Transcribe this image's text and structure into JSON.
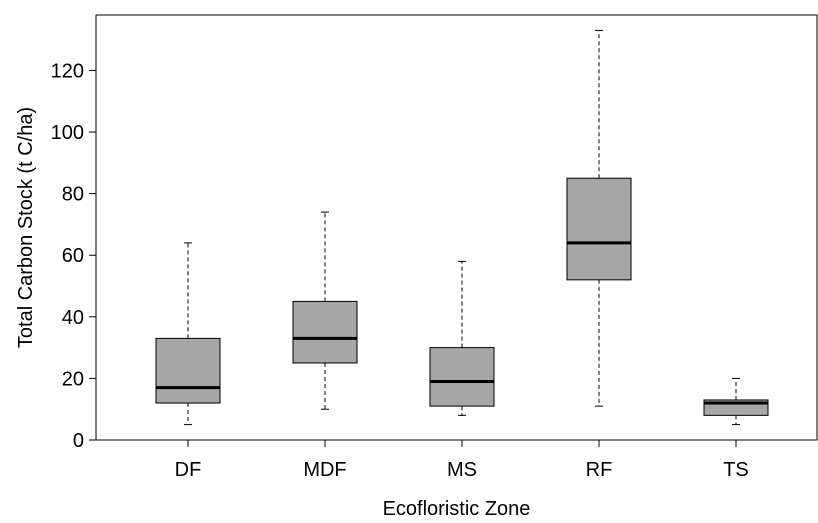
{
  "chart_data": {
    "type": "boxplot",
    "title": "",
    "xlabel": "Ecofloristic Zone",
    "ylabel": "Total Carbon Stock (t C/ha)",
    "ylim": [
      0,
      138
    ],
    "yticks": [
      0,
      20,
      40,
      60,
      80,
      100,
      120
    ],
    "categories": [
      "DF",
      "MDF",
      "MS",
      "RF",
      "TS"
    ],
    "series": [
      {
        "boxes": [
          {
            "category": "DF",
            "whisker_low": 5,
            "q1": 12,
            "median": 17,
            "q3": 33,
            "whisker_high": 64
          },
          {
            "category": "MDF",
            "whisker_low": 10,
            "q1": 25,
            "median": 33,
            "q3": 45,
            "whisker_high": 74
          },
          {
            "category": "MS",
            "whisker_low": 8,
            "q1": 11,
            "median": 19,
            "q3": 30,
            "whisker_high": 58
          },
          {
            "category": "RF",
            "whisker_low": 11,
            "q1": 52,
            "median": 64,
            "q3": 85,
            "whisker_high": 133
          },
          {
            "category": "TS",
            "whisker_low": 5,
            "q1": 8,
            "median": 12,
            "q3": 13,
            "whisker_high": 20
          }
        ]
      }
    ],
    "grid": false,
    "legend": "none",
    "colors": {
      "box_fill": "#a6a6a6",
      "stroke": "#000000",
      "background": "#ffffff"
    }
  }
}
